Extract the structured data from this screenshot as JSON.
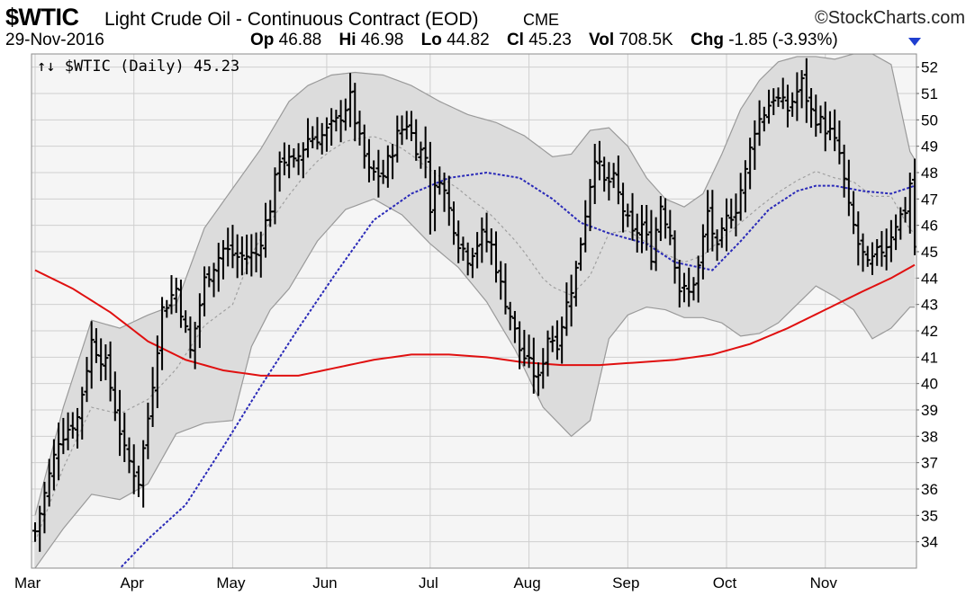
{
  "header": {
    "symbol": "$WTIC",
    "description": "Light Crude Oil - Continuous Contract (EOD)",
    "exchange": "CME",
    "brand": "©StockCharts.com",
    "date": "29-Nov-2016",
    "open_label": "Op",
    "open": "46.88",
    "high_label": "Hi",
    "high": "46.98",
    "low_label": "Lo",
    "low": "44.82",
    "close_label": "Cl",
    "close": "45.23",
    "volume_label": "Vol",
    "volume": "708.5K",
    "change_label": "Chg",
    "change": "-1.85 (-3.93%)",
    "change_direction": "down"
  },
  "chart_data": {
    "type": "line",
    "chart_style": "ohlc-bar",
    "title": "↑↓ $WTIC (Daily) 45.23",
    "xlabel": "",
    "ylabel": "",
    "ylim": [
      33,
      52.5
    ],
    "y_ticks": [
      34,
      35,
      36,
      37,
      38,
      39,
      40,
      41,
      42,
      43,
      44,
      45,
      46,
      47,
      48,
      49,
      50,
      51,
      52
    ],
    "y_axis_side": "right",
    "x_tick_labels": [
      "Mar",
      "Apr",
      "May",
      "Jun",
      "Jul",
      "Aug",
      "Sep",
      "Oct",
      "Nov"
    ],
    "x_tick_day_index": [
      0,
      21,
      42,
      62,
      84,
      105,
      126,
      147,
      168
    ],
    "trading_days": 188,
    "grid": true,
    "colors": {
      "price_bars": "#000000",
      "band_fill": "#dcdcdc",
      "band_edge": "#9a9a9a",
      "band_middle": "#a0a0a0",
      "ma_50": "#2a2ab8",
      "ma_200": "#e01010",
      "plot_background": "#f5f5f5",
      "grid": "#cfcfcf"
    },
    "price_keypoints": [
      [
        0,
        34.4
      ],
      [
        5,
        37.9
      ],
      [
        9,
        38.7
      ],
      [
        12,
        41.6
      ],
      [
        15,
        40.7
      ],
      [
        19,
        37.4
      ],
      [
        22,
        36.3
      ],
      [
        24,
        38.7
      ],
      [
        27,
        42.8
      ],
      [
        30,
        43.6
      ],
      [
        33,
        41.2
      ],
      [
        36,
        43.9
      ],
      [
        40,
        45.1
      ],
      [
        43,
        44.8
      ],
      [
        47,
        44.9
      ],
      [
        50,
        46.7
      ],
      [
        52,
        48.6
      ],
      [
        55,
        48.3
      ],
      [
        58,
        49.3
      ],
      [
        61,
        49.4
      ],
      [
        64,
        49.9
      ],
      [
        67,
        50.8
      ],
      [
        69,
        49.2
      ],
      [
        71,
        48.0
      ],
      [
        74,
        47.9
      ],
      [
        77,
        49.4
      ],
      [
        79,
        49.9
      ],
      [
        81,
        49.0
      ],
      [
        83,
        48.6
      ],
      [
        84,
        46.7
      ],
      [
        86,
        47.9
      ],
      [
        88,
        46.6
      ],
      [
        90,
        45.4
      ],
      [
        92,
        44.8
      ],
      [
        95,
        45.6
      ],
      [
        97,
        45.2
      ],
      [
        99,
        43.7
      ],
      [
        101,
        42.6
      ],
      [
        103,
        41.3
      ],
      [
        105,
        40.7
      ],
      [
        107,
        40.1
      ],
      [
        109,
        41.8
      ],
      [
        111,
        41.6
      ],
      [
        113,
        43.0
      ],
      [
        115,
        44.3
      ],
      [
        117,
        46.5
      ],
      [
        119,
        48.7
      ],
      [
        121,
        47.6
      ],
      [
        123,
        47.7
      ],
      [
        125,
        46.6
      ],
      [
        127,
        45.6
      ],
      [
        129,
        46.0
      ],
      [
        131,
        44.9
      ],
      [
        133,
        46.8
      ],
      [
        135,
        45.7
      ],
      [
        137,
        43.6
      ],
      [
        139,
        43.4
      ],
      [
        141,
        44.4
      ],
      [
        143,
        46.5
      ],
      [
        145,
        45.0
      ],
      [
        147,
        46.2
      ],
      [
        149,
        46.7
      ],
      [
        151,
        48.0
      ],
      [
        153,
        49.7
      ],
      [
        155,
        50.3
      ],
      [
        157,
        50.9
      ],
      [
        160,
        50.4
      ],
      [
        163,
        51.4
      ],
      [
        165,
        50.3
      ],
      [
        167,
        49.9
      ],
      [
        169,
        49.5
      ],
      [
        171,
        48.7
      ],
      [
        173,
        46.6
      ],
      [
        175,
        45.3
      ],
      [
        177,
        44.4
      ],
      [
        179,
        44.9
      ],
      [
        181,
        45.3
      ],
      [
        183,
        46.1
      ],
      [
        185,
        46.6
      ],
      [
        186,
        47.6
      ],
      [
        187,
        45.2
      ]
    ],
    "series": [
      {
        "name": "SMA 50",
        "keypoints": [
          [
            17,
            32.8
          ],
          [
            24,
            34.1
          ],
          [
            32,
            35.4
          ],
          [
            40,
            37.6
          ],
          [
            48,
            39.9
          ],
          [
            56,
            42.1
          ],
          [
            64,
            44.2
          ],
          [
            72,
            46.2
          ],
          [
            80,
            47.2
          ],
          [
            88,
            47.8
          ],
          [
            96,
            48.0
          ],
          [
            103,
            47.8
          ],
          [
            110,
            47.0
          ],
          [
            116,
            46.1
          ],
          [
            122,
            45.7
          ],
          [
            130,
            45.3
          ],
          [
            136,
            44.6
          ],
          [
            144,
            44.3
          ],
          [
            150,
            45.4
          ],
          [
            156,
            46.6
          ],
          [
            162,
            47.3
          ],
          [
            166,
            47.5
          ],
          [
            170,
            47.5
          ],
          [
            176,
            47.3
          ],
          [
            182,
            47.2
          ],
          [
            187,
            47.5
          ]
        ]
      },
      {
        "name": "SMA 200",
        "keypoints": [
          [
            0,
            44.3
          ],
          [
            8,
            43.6
          ],
          [
            16,
            42.7
          ],
          [
            24,
            41.6
          ],
          [
            32,
            40.9
          ],
          [
            40,
            40.5
          ],
          [
            48,
            40.3
          ],
          [
            56,
            40.3
          ],
          [
            64,
            40.6
          ],
          [
            72,
            40.9
          ],
          [
            80,
            41.1
          ],
          [
            88,
            41.1
          ],
          [
            96,
            41.0
          ],
          [
            104,
            40.8
          ],
          [
            112,
            40.7
          ],
          [
            120,
            40.7
          ],
          [
            128,
            40.8
          ],
          [
            136,
            40.9
          ],
          [
            144,
            41.1
          ],
          [
            152,
            41.5
          ],
          [
            160,
            42.1
          ],
          [
            168,
            42.8
          ],
          [
            176,
            43.5
          ],
          [
            182,
            44.0
          ],
          [
            187,
            44.5
          ]
        ]
      },
      {
        "name": "Bollinger Upper",
        "keypoints": [
          [
            0,
            35.0
          ],
          [
            6,
            39.1
          ],
          [
            12,
            42.4
          ],
          [
            18,
            42.1
          ],
          [
            24,
            42.6
          ],
          [
            30,
            43.0
          ],
          [
            36,
            45.9
          ],
          [
            42,
            47.4
          ],
          [
            48,
            48.9
          ],
          [
            54,
            50.7
          ],
          [
            58,
            51.3
          ],
          [
            63,
            51.7
          ],
          [
            68,
            51.8
          ],
          [
            74,
            51.7
          ],
          [
            80,
            51.3
          ],
          [
            86,
            50.7
          ],
          [
            92,
            50.2
          ],
          [
            98,
            49.9
          ],
          [
            104,
            49.4
          ],
          [
            110,
            48.6
          ],
          [
            114,
            48.7
          ],
          [
            118,
            49.6
          ],
          [
            122,
            49.7
          ],
          [
            126,
            49.0
          ],
          [
            130,
            47.8
          ],
          [
            134,
            47.0
          ],
          [
            138,
            46.7
          ],
          [
            142,
            47.2
          ],
          [
            146,
            48.7
          ],
          [
            150,
            50.4
          ],
          [
            154,
            51.5
          ],
          [
            158,
            52.2
          ],
          [
            162,
            52.4
          ],
          [
            166,
            52.4
          ],
          [
            170,
            52.3
          ],
          [
            174,
            52.5
          ],
          [
            178,
            52.5
          ],
          [
            182,
            52.1
          ],
          [
            186,
            48.8
          ],
          [
            187,
            48.5
          ]
        ]
      },
      {
        "name": "Bollinger Lower",
        "keypoints": [
          [
            0,
            33.0
          ],
          [
            6,
            34.5
          ],
          [
            12,
            35.8
          ],
          [
            18,
            35.6
          ],
          [
            24,
            36.2
          ],
          [
            30,
            38.1
          ],
          [
            36,
            38.5
          ],
          [
            42,
            38.6
          ],
          [
            46,
            41.4
          ],
          [
            50,
            42.8
          ],
          [
            54,
            43.6
          ],
          [
            60,
            45.4
          ],
          [
            66,
            46.6
          ],
          [
            72,
            47.0
          ],
          [
            78,
            46.4
          ],
          [
            84,
            45.3
          ],
          [
            90,
            44.4
          ],
          [
            96,
            43.1
          ],
          [
            102,
            41.3
          ],
          [
            108,
            39.1
          ],
          [
            114,
            38.0
          ],
          [
            118,
            38.6
          ],
          [
            122,
            41.7
          ],
          [
            126,
            42.6
          ],
          [
            130,
            42.9
          ],
          [
            134,
            42.8
          ],
          [
            138,
            42.5
          ],
          [
            142,
            42.5
          ],
          [
            146,
            42.3
          ],
          [
            150,
            41.8
          ],
          [
            154,
            41.9
          ],
          [
            158,
            42.3
          ],
          [
            162,
            43.0
          ],
          [
            166,
            43.7
          ],
          [
            170,
            43.3
          ],
          [
            174,
            42.8
          ],
          [
            178,
            41.7
          ],
          [
            182,
            42.1
          ],
          [
            186,
            42.9
          ],
          [
            187,
            42.9
          ]
        ]
      }
    ]
  }
}
